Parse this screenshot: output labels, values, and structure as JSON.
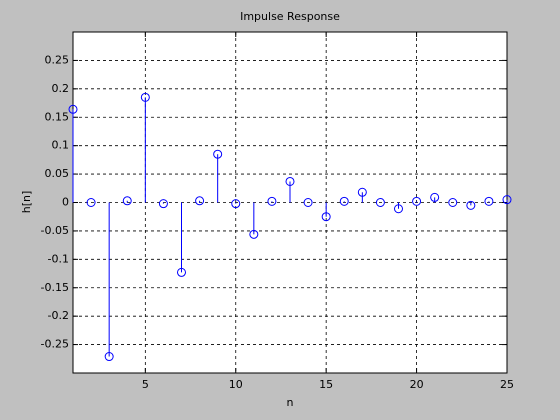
{
  "chart_data": {
    "type": "stem",
    "title": "Impulse Response",
    "x_label": "n",
    "y_label": "h[n]",
    "x": [
      1,
      2,
      3,
      4,
      5,
      6,
      7,
      8,
      9,
      10,
      11,
      12,
      13,
      14,
      15,
      16,
      17,
      18,
      19,
      20,
      21,
      22,
      23,
      24,
      25
    ],
    "series": [
      {
        "color": "#0000ff",
        "values": [
          0.164,
          0,
          -0.271,
          0.003,
          0.185,
          -0.002,
          -0.123,
          0.003,
          0.085,
          -0.002,
          -0.056,
          0.002,
          0.037,
          0,
          -0.025,
          0.002,
          0.018,
          0,
          -0.011,
          0.002,
          0.009,
          0,
          -0.005,
          0.002,
          0.005
        ]
      }
    ],
    "xlim": [
      1,
      25
    ],
    "ylim": [
      -0.3,
      0.3
    ],
    "xticks": [
      5,
      10,
      15,
      20,
      25
    ],
    "yticks": [
      -0.25,
      -0.2,
      -0.15,
      -0.1,
      -0.05,
      0,
      0.05,
      0.1,
      0.15,
      0.2,
      0.25
    ],
    "grid": true
  }
}
